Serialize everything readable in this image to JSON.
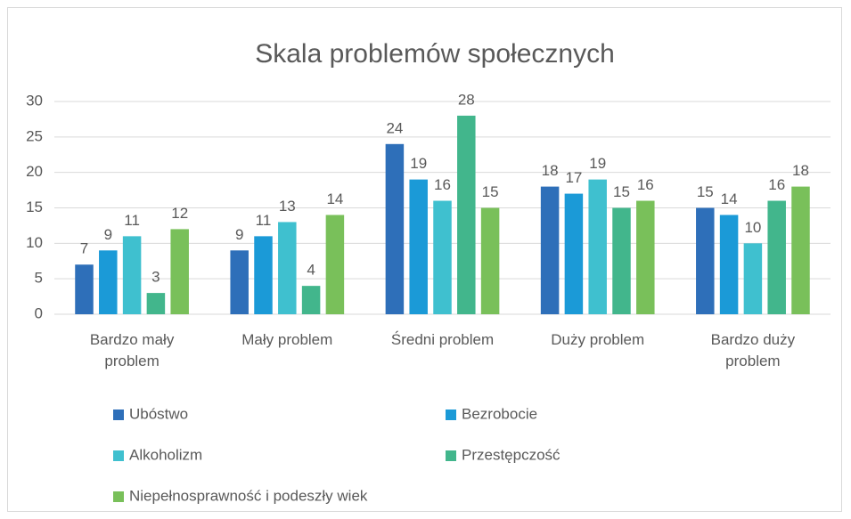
{
  "chart_data": {
    "type": "bar",
    "title": "Skala problemów społecznych",
    "categories": [
      "Bardzo mały problem",
      "Mały problem",
      "Średni problem",
      "Duży problem",
      "Bardzo duży problem"
    ],
    "series": [
      {
        "name": "Ubóstwo",
        "color": "#2e6fb9",
        "values": [
          7,
          9,
          24,
          18,
          15
        ]
      },
      {
        "name": "Bezrobocie",
        "color": "#1b9ad7",
        "values": [
          9,
          11,
          19,
          17,
          14
        ]
      },
      {
        "name": "Alkoholizm",
        "color": "#3fc0cf",
        "values": [
          11,
          13,
          16,
          19,
          10
        ]
      },
      {
        "name": "Przestępczość",
        "color": "#42b68c",
        "values": [
          3,
          4,
          28,
          15,
          16
        ]
      },
      {
        "name": "Niepełnosprawność i podeszły wiek",
        "color": "#79c05a",
        "values": [
          12,
          14,
          15,
          16,
          18
        ]
      }
    ],
    "ylim": [
      0,
      30
    ],
    "yticks": [
      0,
      5,
      10,
      15,
      20,
      25,
      30
    ],
    "grid": true,
    "legend": "bottom"
  }
}
